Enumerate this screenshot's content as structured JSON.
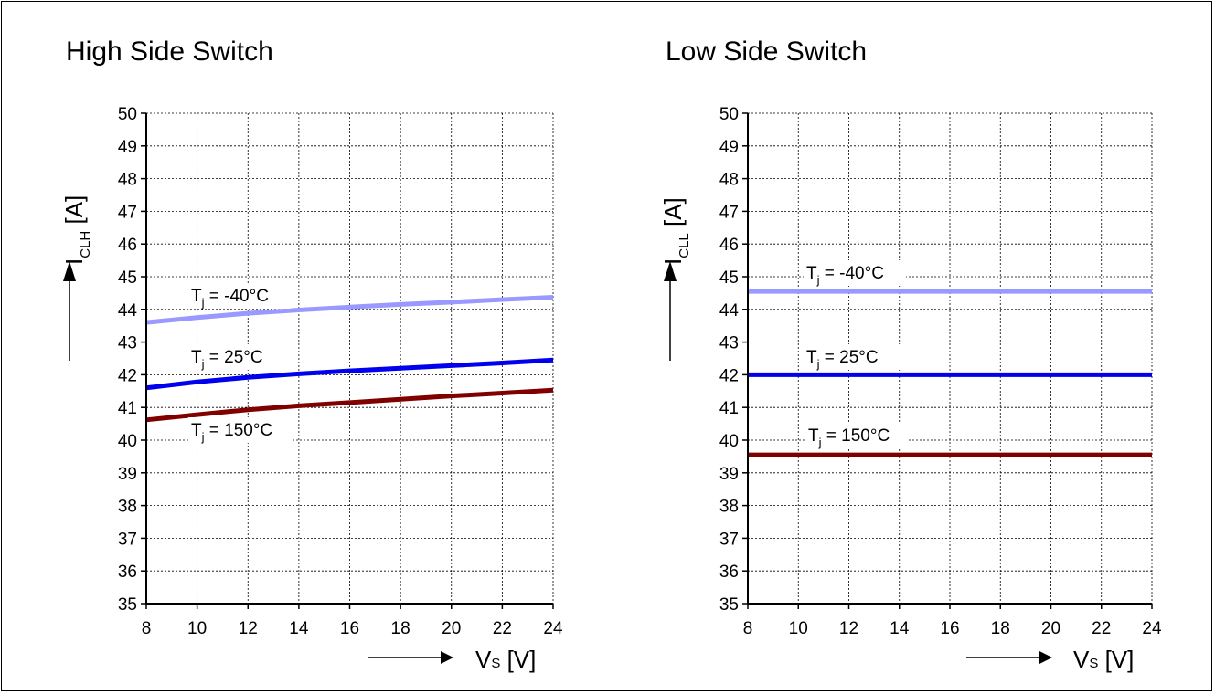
{
  "chart_data": [
    {
      "type": "line",
      "title": "High Side Switch",
      "ylabel_main": "I",
      "ylabel_sub": "CLH",
      "ylabel_unit": " [A]",
      "xlabel_main": "V",
      "xlabel_sub": "S",
      "xlabel_unit": " [V]",
      "xlim": [
        8,
        24
      ],
      "ylim": [
        35,
        50
      ],
      "xticks": [
        8,
        10,
        12,
        14,
        16,
        18,
        20,
        22,
        24
      ],
      "yticks": [
        35,
        36,
        37,
        38,
        39,
        40,
        41,
        42,
        43,
        44,
        45,
        46,
        47,
        48,
        49,
        50
      ],
      "grid": true,
      "series": [
        {
          "label_main": "T",
          "label_sub": "j",
          "label_rest": " = -40°C",
          "color": "#9999ff",
          "x": [
            8,
            10,
            12,
            14,
            16,
            18,
            20,
            22,
            24
          ],
          "y": [
            43.6,
            43.75,
            43.88,
            43.98,
            44.07,
            44.15,
            44.22,
            44.3,
            44.37
          ]
        },
        {
          "label_main": "T",
          "label_sub": "j",
          "label_rest": " = 25°C",
          "color": "#0000ee",
          "x": [
            8,
            10,
            12,
            14,
            16,
            18,
            20,
            22,
            24
          ],
          "y": [
            41.6,
            41.78,
            41.92,
            42.03,
            42.12,
            42.2,
            42.28,
            42.36,
            42.45
          ]
        },
        {
          "label_main": "T",
          "label_sub": "j",
          "label_rest": " = 150°C",
          "color": "#800000",
          "x": [
            8,
            10,
            12,
            14,
            16,
            18,
            20,
            22,
            24
          ],
          "y": [
            40.62,
            40.78,
            40.93,
            41.05,
            41.15,
            41.25,
            41.35,
            41.44,
            41.53
          ]
        }
      ]
    },
    {
      "type": "line",
      "title": "Low Side Switch",
      "ylabel_main": "I",
      "ylabel_sub": "CLL",
      "ylabel_unit": " [A]",
      "xlabel_main": "V",
      "xlabel_sub": "S",
      "xlabel_unit": " [V]",
      "xlim": [
        8,
        24
      ],
      "ylim": [
        35,
        50
      ],
      "xticks": [
        8,
        10,
        12,
        14,
        16,
        18,
        20,
        22,
        24
      ],
      "yticks": [
        35,
        36,
        37,
        38,
        39,
        40,
        41,
        42,
        43,
        44,
        45,
        46,
        47,
        48,
        49,
        50
      ],
      "grid": true,
      "series": [
        {
          "label_main": "T",
          "label_sub": "j",
          "label_rest": " = -40°C",
          "color": "#9999ff",
          "x": [
            8,
            24
          ],
          "y": [
            44.55,
            44.55
          ]
        },
        {
          "label_main": "T",
          "label_sub": "j",
          "label_rest": " = 25°C",
          "color": "#0000ee",
          "x": [
            8,
            24
          ],
          "y": [
            42.0,
            42.0
          ]
        },
        {
          "label_main": "T",
          "label_sub": "j",
          "label_rest": " = 150°C",
          "color": "#800000",
          "x": [
            8,
            24
          ],
          "y": [
            39.55,
            39.55
          ]
        }
      ]
    }
  ]
}
